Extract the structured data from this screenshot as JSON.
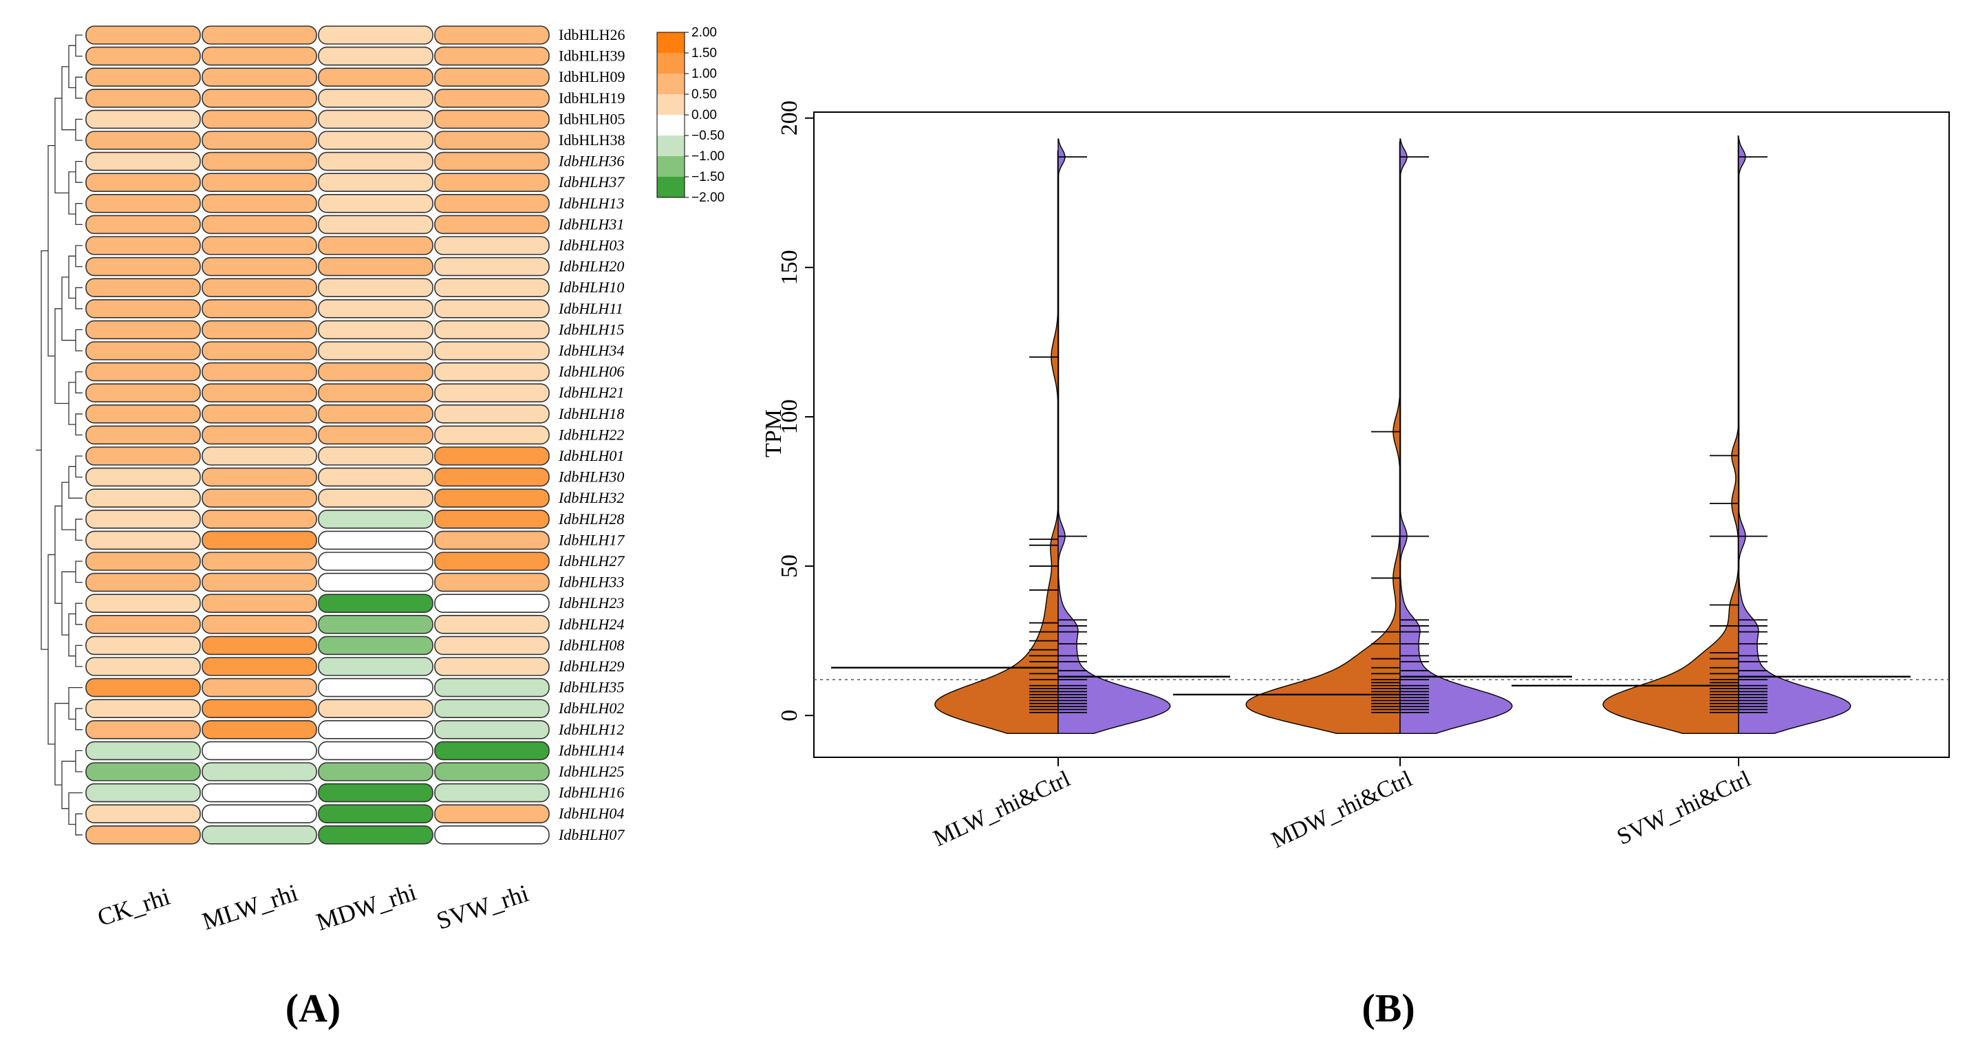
{
  "figure_labels": {
    "panel_a": "(A)",
    "panel_b": "(B)"
  },
  "colors": {
    "orange_strong": "#ff7f0e",
    "orange_mid": "#fdaa5c",
    "orange_light": "#fdd9b2",
    "white": "#ffffff",
    "green_light": "#c6e3c3",
    "green_mid": "#86c47d",
    "green_strong": "#3da33a",
    "violin_left": "#d2691e",
    "violin_right": "#9370db"
  },
  "chart_data": [
    {
      "type": "heatmap",
      "title": "",
      "columns": [
        "CK_rhi",
        "MLW_rhi",
        "MDW_rhi",
        "SVW_rhi"
      ],
      "rows": [
        {
          "gene": "IdbHLH26",
          "italic": false,
          "values": [
            1.0,
            1.0,
            0.5,
            1.0
          ]
        },
        {
          "gene": "IdbHLH39",
          "italic": false,
          "values": [
            1.0,
            1.0,
            0.5,
            1.0
          ]
        },
        {
          "gene": "IdbHLH09",
          "italic": false,
          "values": [
            1.0,
            1.0,
            1.0,
            1.0
          ]
        },
        {
          "gene": "IdbHLH19",
          "italic": false,
          "values": [
            1.0,
            1.0,
            0.5,
            1.0
          ]
        },
        {
          "gene": "IdbHLH05",
          "italic": false,
          "values": [
            0.5,
            1.0,
            0.5,
            1.0
          ]
        },
        {
          "gene": "IdbHLH38",
          "italic": false,
          "values": [
            1.0,
            1.0,
            0.5,
            1.0
          ]
        },
        {
          "gene": "IdbHLH36",
          "italic": true,
          "values": [
            0.5,
            1.0,
            0.5,
            1.0
          ]
        },
        {
          "gene": "IdbHLH37",
          "italic": true,
          "values": [
            1.0,
            1.0,
            0.5,
            1.0
          ]
        },
        {
          "gene": "IdbHLH13",
          "italic": true,
          "values": [
            1.0,
            1.0,
            0.5,
            1.0
          ]
        },
        {
          "gene": "IdbHLH31",
          "italic": true,
          "values": [
            1.0,
            1.0,
            0.5,
            1.0
          ]
        },
        {
          "gene": "IdbHLH03",
          "italic": true,
          "values": [
            1.0,
            1.0,
            1.0,
            0.5
          ]
        },
        {
          "gene": "IdbHLH20",
          "italic": true,
          "values": [
            1.0,
            1.0,
            1.0,
            0.5
          ]
        },
        {
          "gene": "IdbHLH10",
          "italic": true,
          "values": [
            1.0,
            1.0,
            0.5,
            0.5
          ]
        },
        {
          "gene": "IdbHLH11",
          "italic": true,
          "values": [
            1.0,
            1.0,
            0.5,
            0.5
          ]
        },
        {
          "gene": "IdbHLH15",
          "italic": true,
          "values": [
            1.0,
            1.0,
            0.5,
            0.5
          ]
        },
        {
          "gene": "IdbHLH34",
          "italic": true,
          "values": [
            1.0,
            1.0,
            0.5,
            0.5
          ]
        },
        {
          "gene": "IdbHLH06",
          "italic": true,
          "values": [
            1.0,
            1.0,
            1.0,
            0.5
          ]
        },
        {
          "gene": "IdbHLH21",
          "italic": true,
          "values": [
            1.0,
            1.0,
            1.0,
            0.5
          ]
        },
        {
          "gene": "IdbHLH18",
          "italic": true,
          "values": [
            1.0,
            1.0,
            1.0,
            0.5
          ]
        },
        {
          "gene": "IdbHLH22",
          "italic": true,
          "values": [
            1.0,
            1.0,
            1.0,
            0.5
          ]
        },
        {
          "gene": "IdbHLH01",
          "italic": true,
          "values": [
            1.0,
            0.5,
            0.5,
            1.5
          ]
        },
        {
          "gene": "IdbHLH30",
          "italic": true,
          "values": [
            0.5,
            1.0,
            0.5,
            1.5
          ]
        },
        {
          "gene": "IdbHLH32",
          "italic": true,
          "values": [
            0.5,
            1.0,
            0.5,
            1.5
          ]
        },
        {
          "gene": "IdbHLH28",
          "italic": true,
          "values": [
            0.5,
            1.0,
            -0.5,
            1.5
          ]
        },
        {
          "gene": "IdbHLH17",
          "italic": true,
          "values": [
            0.5,
            1.5,
            0.0,
            1.0
          ]
        },
        {
          "gene": "IdbHLH27",
          "italic": true,
          "values": [
            1.0,
            1.0,
            0.0,
            1.5
          ]
        },
        {
          "gene": "IdbHLH33",
          "italic": true,
          "values": [
            1.0,
            1.0,
            0.0,
            1.0
          ]
        },
        {
          "gene": "IdbHLH23",
          "italic": true,
          "values": [
            0.5,
            1.0,
            -1.5,
            0.0
          ]
        },
        {
          "gene": "IdbHLH24",
          "italic": true,
          "values": [
            1.0,
            1.0,
            -1.0,
            0.5
          ]
        },
        {
          "gene": "IdbHLH08",
          "italic": true,
          "values": [
            0.5,
            1.5,
            -1.0,
            0.5
          ]
        },
        {
          "gene": "IdbHLH29",
          "italic": true,
          "values": [
            0.5,
            1.5,
            -0.5,
            0.5
          ]
        },
        {
          "gene": "IdbHLH35",
          "italic": true,
          "values": [
            1.5,
            1.0,
            0.0,
            -0.5
          ]
        },
        {
          "gene": "IdbHLH02",
          "italic": true,
          "values": [
            0.5,
            1.5,
            0.5,
            -0.5
          ]
        },
        {
          "gene": "IdbHLH12",
          "italic": true,
          "values": [
            1.0,
            1.5,
            0.0,
            -0.5
          ]
        },
        {
          "gene": "IdbHLH14",
          "italic": true,
          "values": [
            -0.5,
            0.0,
            0.0,
            -1.5
          ]
        },
        {
          "gene": "IdbHLH25",
          "italic": true,
          "values": [
            -1.0,
            -0.5,
            -1.0,
            -1.0
          ]
        },
        {
          "gene": "IdbHLH16",
          "italic": true,
          "values": [
            -0.5,
            0.0,
            -1.5,
            -0.5
          ]
        },
        {
          "gene": "IdbHLH04",
          "italic": true,
          "values": [
            0.5,
            0.0,
            -1.5,
            1.0
          ]
        },
        {
          "gene": "IdbHLH07",
          "italic": true,
          "values": [
            1.0,
            -0.5,
            -1.5,
            0.0
          ]
        }
      ],
      "legend": {
        "ticks": [
          "2.00",
          "1.50",
          "1.00",
          "0.50",
          "0.00",
          "−0.50",
          "−1.00",
          "−1.50",
          "−2.00"
        ],
        "range": [
          -2.0,
          2.0
        ],
        "bins": [
          {
            "min": 1.5,
            "max": 2.0,
            "color": "#ff7f0e"
          },
          {
            "min": 1.0,
            "max": 1.5,
            "color": "#fd9a44"
          },
          {
            "min": 0.5,
            "max": 1.0,
            "color": "#fdb779"
          },
          {
            "min": 0.0,
            "max": 0.5,
            "color": "#fdd9b2"
          },
          {
            "min": -0.5,
            "max": 0.0,
            "color": "#ffffff"
          },
          {
            "min": -1.0,
            "max": -0.5,
            "color": "#c6e3c3"
          },
          {
            "min": -1.5,
            "max": -1.0,
            "color": "#86c47d"
          },
          {
            "min": -2.0,
            "max": -1.5,
            "color": "#3da33a"
          }
        ]
      },
      "dendrogram": "hierarchical clustering of rows (left side)"
    },
    {
      "type": "violin",
      "title": "",
      "xlabel": "",
      "ylabel": "TPM",
      "ylim": [
        -14,
        202
      ],
      "yticks": [
        0,
        50,
        100,
        150,
        200
      ],
      "reference_line": 12,
      "categories": [
        "MLW_rhi&Ctrl",
        "MDW_rhi&Ctrl",
        "SVW_rhi&Ctrl"
      ],
      "series": [
        {
          "name": "rhi",
          "side": "left",
          "color": "#d2691e",
          "groups": [
            {
              "mean": 16,
              "points": [
                1,
                2,
                3,
                4,
                5,
                6,
                7,
                8,
                9,
                10,
                12,
                14,
                16,
                18,
                20,
                22,
                25,
                28,
                31,
                42,
                50,
                57,
                59,
                120
              ]
            },
            {
              "mean": 7,
              "points": [
                1,
                2,
                3,
                4,
                5,
                6,
                7,
                8,
                9,
                10,
                11,
                12,
                14,
                16,
                19,
                24,
                28,
                46,
                60,
                95
              ]
            },
            {
              "mean": 10,
              "points": [
                1,
                2,
                3,
                4,
                5,
                6,
                7,
                8,
                9,
                10,
                11,
                12,
                14,
                16,
                19,
                21,
                30,
                37,
                60,
                71,
                87
              ]
            }
          ]
        },
        {
          "name": "Ctrl",
          "side": "right",
          "color": "#9370db",
          "groups": [
            {
              "mean": 13,
              "points": [
                1,
                2,
                3,
                4,
                5,
                6,
                7,
                8,
                9,
                10,
                12,
                15,
                18,
                20,
                24,
                28,
                30,
                32,
                60,
                187
              ]
            },
            {
              "mean": 13,
              "points": [
                1,
                2,
                3,
                4,
                5,
                6,
                7,
                8,
                9,
                10,
                12,
                15,
                18,
                20,
                24,
                28,
                30,
                32,
                60,
                187
              ]
            },
            {
              "mean": 13,
              "points": [
                1,
                2,
                3,
                4,
                5,
                6,
                7,
                8,
                9,
                10,
                12,
                15,
                18,
                20,
                24,
                28,
                30,
                32,
                60,
                187
              ]
            }
          ]
        }
      ],
      "left_bumps": [
        [
          120,
          6
        ],
        [
          57,
          5
        ],
        [
          42,
          7
        ],
        [
          31,
          8
        ]
      ],
      "left_bumps_mdw": [
        [
          95,
          5
        ],
        [
          46,
          6
        ],
        [
          20,
          4
        ]
      ],
      "left_bumps_svw": [
        [
          87,
          4
        ],
        [
          71,
          5
        ],
        [
          37,
          5
        ],
        [
          20,
          4
        ]
      ],
      "right_bumps": [
        [
          187,
          2.5
        ],
        [
          60,
          3.5
        ],
        [
          30,
          3
        ]
      ]
    }
  ]
}
